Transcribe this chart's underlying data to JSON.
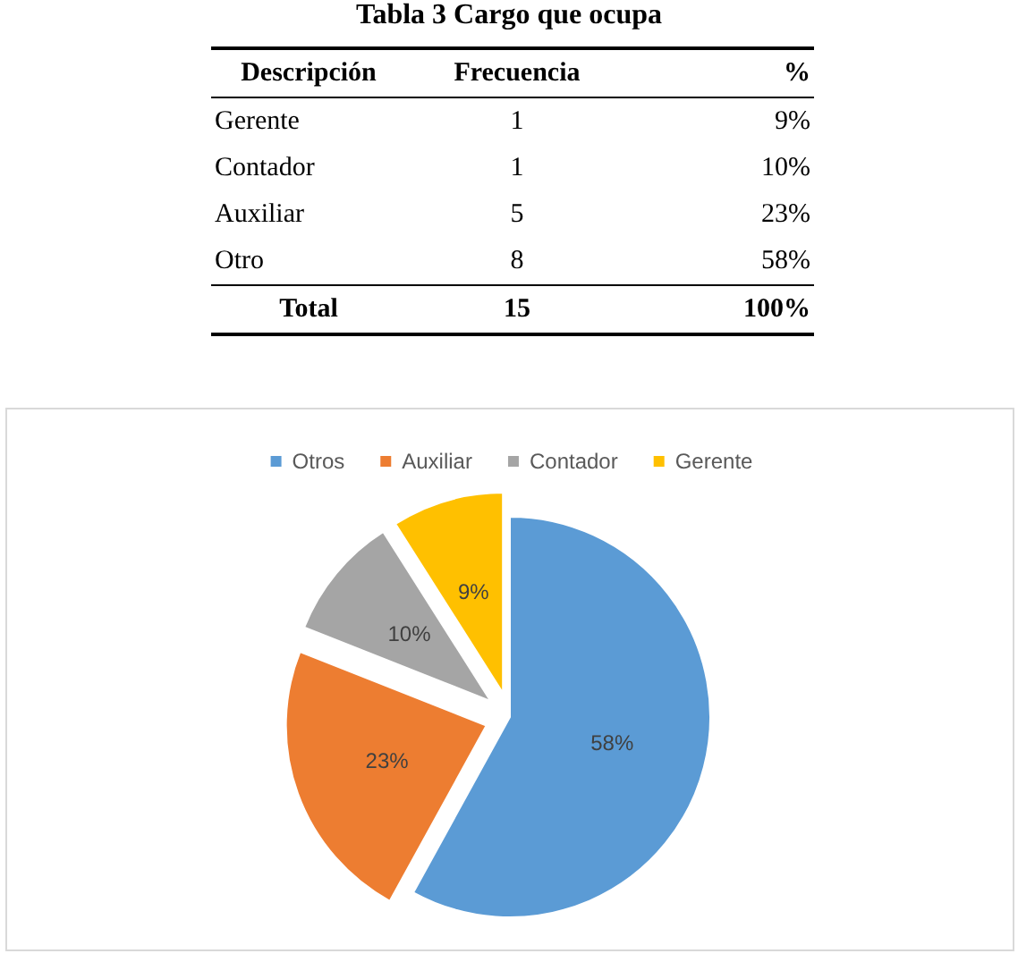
{
  "chart_data": [
    {
      "type": "other",
      "title": "Tabla 3 Cargo que ocupa",
      "annotations": [
        "Descripción",
        "Frecuencia",
        "%",
        "Gerente",
        "1",
        "9%",
        "Contador",
        "1",
        "10%",
        "Auxiliar",
        "5",
        "23%",
        "Otro",
        "8",
        "58%",
        "Total",
        "15",
        "100%"
      ]
    },
    {
      "type": "pie",
      "categories": [
        "Otros",
        "Auxiliar",
        "Contador",
        "Gerente"
      ],
      "values": [
        58,
        23,
        10,
        9
      ],
      "colors": [
        "#5b9bd5",
        "#ed7d31",
        "#a5a5a5",
        "#ffc000"
      ],
      "value_labels": [
        "58%",
        "23%",
        "10%",
        "9%"
      ],
      "legend": "top"
    }
  ]
}
